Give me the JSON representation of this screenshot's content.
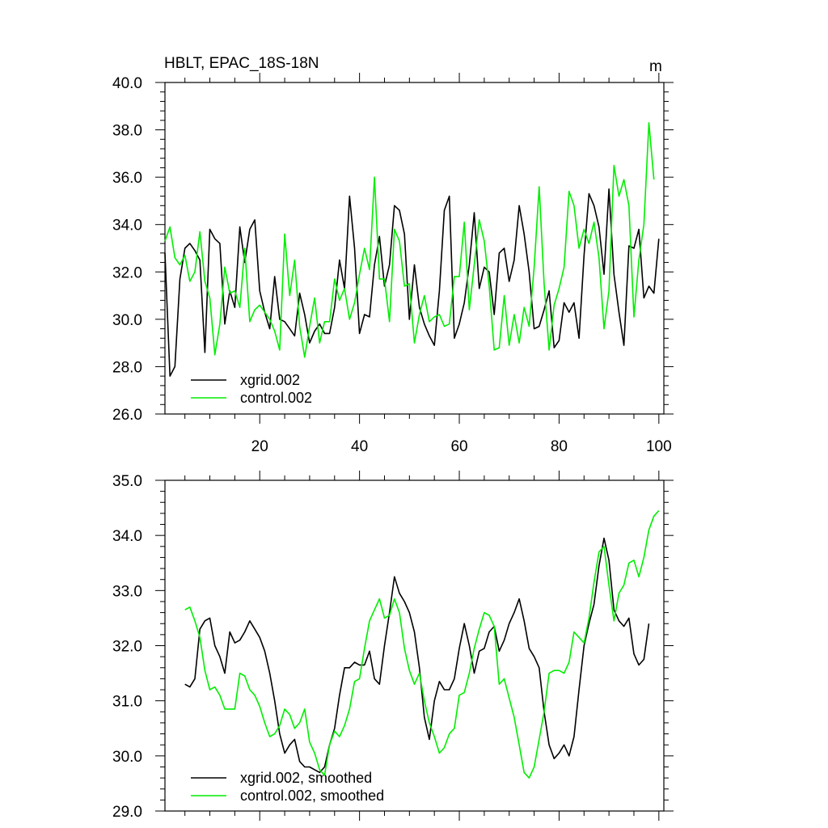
{
  "colors": {
    "xgrid": "#000000",
    "control": "#00ee00"
  },
  "chart_data": [
    {
      "type": "line",
      "title": "HBLT, EPAC_18S-18N",
      "units_label": "m",
      "xlim": [
        1,
        101
      ],
      "ylim": [
        26,
        40
      ],
      "x_ticks": [
        20,
        40,
        60,
        80,
        100
      ],
      "x_tick_labels": [
        "20",
        "40",
        "60",
        "80",
        "100"
      ],
      "y_ticks": [
        26,
        28,
        30,
        32,
        34,
        36,
        38,
        40
      ],
      "y_tick_labels": [
        "26.0",
        "28.0",
        "30.0",
        "32.0",
        "34.0",
        "36.0",
        "38.0",
        "40.0"
      ],
      "legend_position": "bottom-left",
      "series": [
        {
          "name": "xgrid.002",
          "color_key": "xgrid",
          "start": 1,
          "values": [
            32.8,
            27.6,
            28.0,
            31.7,
            33.0,
            33.2,
            32.9,
            32.5,
            28.6,
            33.8,
            33.4,
            33.2,
            29.8,
            31.2,
            30.5,
            33.9,
            32.4,
            33.8,
            34.2,
            31.2,
            30.3,
            29.6,
            31.8,
            30.0,
            29.9,
            29.6,
            29.3,
            31.1,
            30.2,
            29.0,
            29.5,
            29.8,
            29.4,
            29.4,
            30.5,
            32.5,
            31.3,
            35.2,
            33.0,
            29.4,
            30.2,
            30.1,
            32.3,
            33.5,
            31.4,
            32.3,
            34.8,
            34.6,
            33.6,
            30.0,
            32.3,
            30.5,
            29.8,
            29.3,
            28.9,
            31.2,
            34.6,
            35.2,
            29.2,
            29.8,
            30.7,
            32.3,
            34.5,
            31.3,
            32.2,
            32.0,
            30.2,
            32.8,
            33.0,
            31.6,
            32.5,
            34.8,
            33.6,
            32.0,
            29.6,
            29.7,
            30.4,
            31.2,
            28.8,
            29.1,
            30.7,
            30.3,
            30.7,
            29.2,
            32.7,
            35.3,
            34.8,
            33.9,
            31.9,
            35.5,
            31.9,
            30.3,
            28.9,
            33.1,
            33.0,
            33.8,
            30.9,
            31.4,
            31.1,
            33.4
          ]
        },
        {
          "name": "control.002",
          "color_key": "control",
          "start": 1,
          "values": [
            33.3,
            33.9,
            32.6,
            32.3,
            32.7,
            31.6,
            32.0,
            33.7,
            31.6,
            30.9,
            28.5,
            29.8,
            32.2,
            31.1,
            31.2,
            30.5,
            33.0,
            29.9,
            30.4,
            30.6,
            30.3,
            30.0,
            29.5,
            28.7,
            33.6,
            31.0,
            32.5,
            29.7,
            28.4,
            29.7,
            30.9,
            29.0,
            29.9,
            29.9,
            31.7,
            30.8,
            31.3,
            30.0,
            30.7,
            31.9,
            33.0,
            32.1,
            36.0,
            31.7,
            31.7,
            29.9,
            33.8,
            33.3,
            31.4,
            31.5,
            29.0,
            30.2,
            31.0,
            29.9,
            30.1,
            30.2,
            29.7,
            29.8,
            31.8,
            31.8,
            34.1,
            30.4,
            32.3,
            34.2,
            33.3,
            31.4,
            28.7,
            28.8,
            31.0,
            28.9,
            30.2,
            29.0,
            30.5,
            29.7,
            32.2,
            35.6,
            31.5,
            28.7,
            30.6,
            31.3,
            32.2,
            35.4,
            34.8,
            33.0,
            33.8,
            33.2,
            34.1,
            32.6,
            29.6,
            31.2,
            36.5,
            35.2,
            35.9,
            34.8,
            30.1,
            32.5,
            34.0,
            38.3,
            35.9
          ]
        }
      ]
    },
    {
      "type": "line",
      "title": "",
      "xlim": [
        1,
        101
      ],
      "ylim": [
        29,
        35
      ],
      "x_ticks": [
        20,
        40,
        60,
        80,
        100
      ],
      "y_ticks": [
        29,
        30,
        31,
        32,
        33,
        34,
        35
      ],
      "y_tick_labels": [
        "29.0",
        "30.0",
        "31.0",
        "32.0",
        "33.0",
        "34.0",
        "35.0"
      ],
      "legend_position": "bottom-left",
      "series": [
        {
          "name": "xgrid.002, smoothed",
          "color_key": "xgrid",
          "start": 5,
          "values": [
            31.3,
            31.25,
            31.4,
            32.3,
            32.45,
            32.5,
            32.0,
            31.8,
            31.5,
            32.25,
            32.05,
            32.1,
            32.25,
            32.45,
            32.3,
            32.15,
            31.9,
            31.5,
            31.0,
            30.4,
            30.05,
            30.2,
            30.3,
            29.9,
            29.8,
            29.8,
            29.75,
            29.7,
            29.8,
            30.2,
            30.5,
            31.1,
            31.6,
            31.6,
            31.7,
            31.65,
            31.65,
            31.9,
            31.4,
            31.3,
            32.0,
            32.6,
            33.25,
            32.95,
            32.8,
            32.6,
            32.25,
            31.6,
            30.7,
            30.3,
            31.0,
            31.35,
            31.2,
            31.2,
            31.4,
            31.95,
            32.4,
            32.0,
            31.5,
            31.9,
            31.95,
            32.25,
            32.35,
            31.9,
            32.1,
            32.4,
            32.6,
            32.85,
            32.45,
            31.95,
            31.8,
            31.6,
            30.8,
            30.2,
            29.95,
            30.05,
            30.2,
            30.0,
            30.35,
            31.2,
            32.0,
            32.4,
            32.75,
            33.45,
            33.95,
            33.55,
            32.65,
            32.45,
            32.35,
            32.5,
            31.85,
            31.65,
            31.75,
            32.4
          ]
        },
        {
          "name": "control.002, smoothed",
          "color_key": "control",
          "start": 5,
          "values": [
            32.65,
            32.7,
            32.45,
            32.15,
            31.55,
            31.2,
            31.25,
            31.1,
            30.85,
            30.85,
            30.85,
            31.5,
            31.45,
            31.2,
            31.1,
            30.9,
            30.6,
            30.35,
            30.4,
            30.55,
            30.85,
            30.75,
            30.5,
            30.6,
            30.85,
            30.25,
            30.05,
            29.75,
            29.65,
            30.2,
            30.45,
            30.35,
            30.55,
            30.85,
            31.35,
            31.4,
            31.95,
            32.45,
            32.65,
            32.85,
            32.5,
            32.55,
            32.85,
            32.6,
            31.95,
            31.55,
            31.3,
            31.5,
            31.0,
            30.6,
            30.35,
            30.05,
            30.15,
            30.4,
            30.5,
            31.1,
            31.15,
            31.5,
            31.95,
            32.3,
            32.6,
            32.55,
            32.35,
            31.3,
            31.4,
            31.05,
            30.7,
            30.2,
            29.7,
            29.6,
            29.8,
            30.3,
            30.8,
            31.5,
            31.55,
            31.55,
            31.5,
            31.7,
            32.25,
            32.15,
            32.05,
            32.5,
            33.15,
            33.7,
            33.8,
            33.1,
            32.45,
            32.95,
            33.1,
            33.5,
            33.55,
            33.25,
            33.6,
            34.1,
            34.35,
            34.45
          ]
        }
      ]
    }
  ]
}
